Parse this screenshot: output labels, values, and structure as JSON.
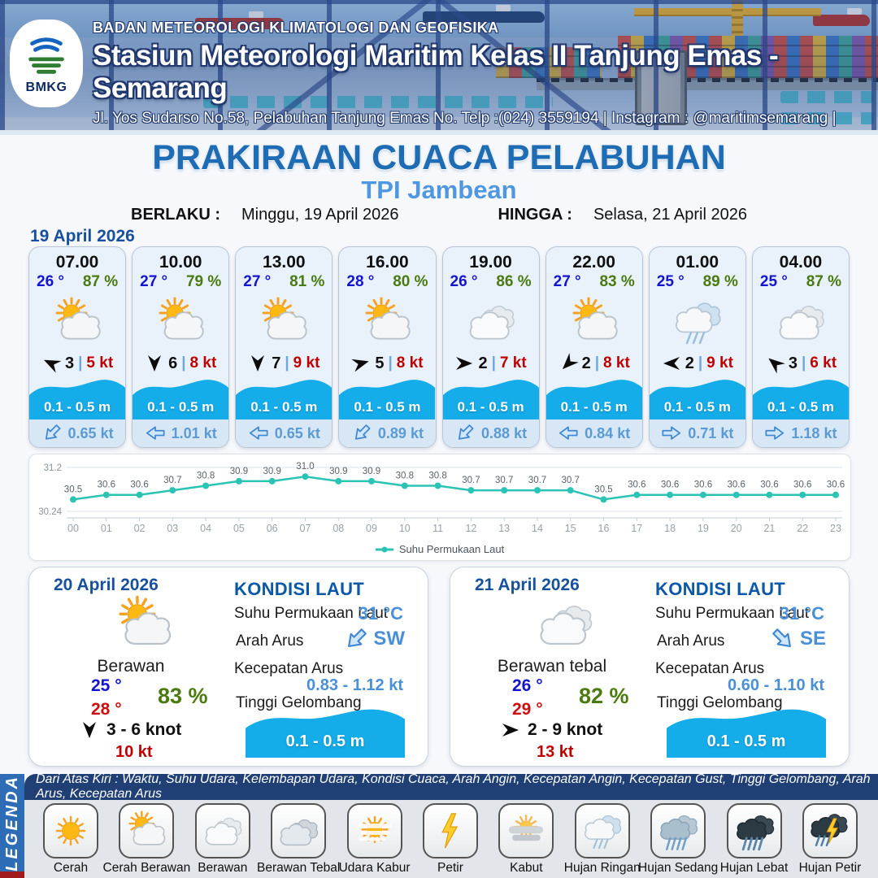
{
  "header": {
    "org": "BADAN METEOROLOGI KLIMATOLOGI DAN GEOFISIKA",
    "station": "Stasiun Meteorologi Maritim Kelas II Tanjung Emas - Semarang",
    "address": "Jl. Yos Sudarso No.58, Pelabuhan Tanjung Emas No. Telp :(024) 3559194 | Instagram : @maritimsemarang |",
    "logo_text": "BMKG"
  },
  "title": {
    "main": "PRAKIRAAN CUACA PELABUHAN",
    "port": "TPI Jambean",
    "berlaku_label": "BERLAKU :",
    "berlaku_value": "Minggu, 19 April 2026",
    "hingga_label": "HINGGA :",
    "hingga_value": "Selasa, 21 April 2026"
  },
  "forecast_date": "19 April 2026",
  "hourly": [
    {
      "time": "07.00",
      "temp": "26 °",
      "humidity": "87 %",
      "icon": "cerah-berawan",
      "wind_deg": -155,
      "wind": "3",
      "gust": "5 kt",
      "wave": "0.1 - 0.5 m",
      "current_deg": 135,
      "current": "0.65 kt"
    },
    {
      "time": "10.00",
      "temp": "27 °",
      "humidity": "79 %",
      "icon": "cerah-berawan",
      "wind_deg": 90,
      "wind": "6",
      "gust": "8 kt",
      "wave": "0.1 - 0.5 m",
      "current_deg": 180,
      "current": "1.01 kt"
    },
    {
      "time": "13.00",
      "temp": "27 °",
      "humidity": "81 %",
      "icon": "cerah-berawan",
      "wind_deg": 90,
      "wind": "7",
      "gust": "9 kt",
      "wave": "0.1 - 0.5 m",
      "current_deg": 180,
      "current": "0.65 kt"
    },
    {
      "time": "16.00",
      "temp": "28 °",
      "humidity": "80 %",
      "icon": "cerah-berawan",
      "wind_deg": -15,
      "wind": "5",
      "gust": "8 kt",
      "wave": "0.1 - 0.5 m",
      "current_deg": 135,
      "current": "0.89 kt"
    },
    {
      "time": "19.00",
      "temp": "26 °",
      "humidity": "86 %",
      "icon": "berawan",
      "wind_deg": 0,
      "wind": "2",
      "gust": "7 kt",
      "wave": "0.1 - 0.5 m",
      "current_deg": 135,
      "current": "0.88 kt"
    },
    {
      "time": "22.00",
      "temp": "27 °",
      "humidity": "83 %",
      "icon": "cerah-berawan",
      "wind_deg": 135,
      "wind": "2",
      "gust": "8 kt",
      "wave": "0.1 - 0.5 m",
      "current_deg": 180,
      "current": "0.84 kt"
    },
    {
      "time": "01.00",
      "temp": "25 °",
      "humidity": "89 %",
      "icon": "hujan-ringan",
      "wind_deg": 180,
      "wind": "2",
      "gust": "9 kt",
      "wave": "0.1 - 0.5 m",
      "current_deg": 0,
      "current": "0.71 kt"
    },
    {
      "time": "04.00",
      "temp": "25 °",
      "humidity": "87 %",
      "icon": "berawan",
      "wind_deg": -140,
      "wind": "3",
      "gust": "6 kt",
      "wave": "0.1 - 0.5 m",
      "current_deg": 0,
      "current": "1.18 kt"
    }
  ],
  "chart_data": {
    "type": "line",
    "title": "Suhu Permukaan Laut",
    "x": [
      "00",
      "01",
      "02",
      "03",
      "04",
      "05",
      "06",
      "07",
      "08",
      "09",
      "10",
      "11",
      "12",
      "13",
      "14",
      "15",
      "16",
      "17",
      "18",
      "19",
      "20",
      "21",
      "22",
      "23"
    ],
    "values": [
      30.5,
      30.6,
      30.6,
      30.7,
      30.8,
      30.9,
      30.9,
      31.0,
      30.9,
      30.9,
      30.8,
      30.8,
      30.7,
      30.7,
      30.7,
      30.7,
      30.5,
      30.6,
      30.6,
      30.6,
      30.6,
      30.6,
      30.6,
      30.6
    ],
    "ylim": [
      30.24,
      31.2
    ],
    "ymax_label": "31.2",
    "ymin_label": "30.24",
    "line_color": "#2bc3b4",
    "grid": true,
    "legend_position": "bottom"
  },
  "daily": [
    {
      "date": "20 April 2026",
      "icon": "cerah-berawan",
      "condition": "Berawan",
      "temp_min": "25 °",
      "temp_max": "28 °",
      "humidity": "83 %",
      "wind_deg": 90,
      "wind": "3  - 6 knot",
      "gust": "10 kt",
      "sea": {
        "title": "KONDISI LAUT",
        "sst_label": "Suhu Permukaan Laut",
        "sst": "31 °C",
        "current_dir_label": "Arah Arus",
        "current_dir": "SW",
        "current_dir_deg": 135,
        "current_speed_label": "Kecepatan Arus",
        "current_speed": "0.83 - 1.12 kt",
        "wave_label": "Tinggi Gelombang",
        "wave": "0.1 - 0.5 m"
      }
    },
    {
      "date": "21 April 2026",
      "icon": "berawan",
      "condition": "Berawan tebal",
      "temp_min": "26 °",
      "temp_max": "29 °",
      "humidity": "82 %",
      "wind_deg": 0,
      "wind": "2  - 9 knot",
      "gust": "13 kt",
      "sea": {
        "title": "KONDISI LAUT",
        "sst_label": "Suhu Permukaan Laut",
        "sst": "31 °C",
        "current_dir_label": "Arah Arus",
        "current_dir": "SE",
        "current_dir_deg": 45,
        "current_speed_label": "Kecepatan Arus",
        "current_speed": "0.60 - 1.10 kt",
        "wave_label": "Tinggi Gelombang",
        "wave": "0.1 - 0.5 m"
      }
    }
  ],
  "legend": {
    "band": "LEGENDA",
    "note": "Dari Atas Kiri : Waktu, Suhu Udara, Kelembapan Udara, Kondisi Cuaca, Arah Angin, Kecepatan Angin, Kecepatan Gust, Tinggi Gelombang, Arah Arus, Kecepatan Arus",
    "items": [
      {
        "icon": "cerah",
        "label": "Cerah"
      },
      {
        "icon": "cerah-berawan",
        "label": "Cerah Berawan"
      },
      {
        "icon": "berawan",
        "label": "Berawan"
      },
      {
        "icon": "berawan-tebal",
        "label": "Berawan Tebal"
      },
      {
        "icon": "udara-kabur",
        "label": "Udara Kabur"
      },
      {
        "icon": "petir",
        "label": "Petir"
      },
      {
        "icon": "kabut",
        "label": "Kabut"
      },
      {
        "icon": "hujan-ringan",
        "label": "Hujan Ringan"
      },
      {
        "icon": "hujan-sedang",
        "label": "Hujan Sedang"
      },
      {
        "icon": "hujan-lebat",
        "label": "Hujan Lebat"
      },
      {
        "icon": "hujan-petir",
        "label": "Hujan Petir"
      }
    ]
  }
}
